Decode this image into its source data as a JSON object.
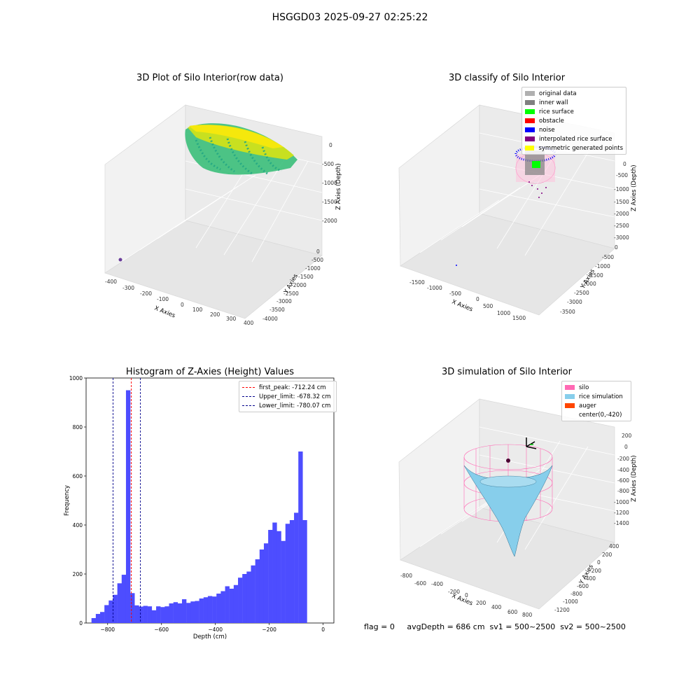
{
  "figure": {
    "title": "HSGGD03 2025-09-27 02:25:22",
    "footer": "flag = 0     avgDepth = 686 cm  sv1 = 500~2500  sv2 = 500~2500"
  },
  "colors": {
    "histogram_bar": "#4d4dff",
    "first_peak": "#ff0000",
    "limits": "#00008b",
    "silo": "#ff69b4",
    "rice_simulation": "#87ceeb",
    "auger": "#ff4500",
    "original_data": "#b0b0b0",
    "inner_wall": "#808080",
    "rice_surface": "#00ff00",
    "obstacle": "#ff0000",
    "noise": "#0000ff",
    "interpolated_rice_surface": "#800080",
    "symmetric_generated_points": "#ffff00"
  },
  "chart_data": [
    {
      "type": "scatter",
      "panel": "raw",
      "title": "3D Plot of Silo Interior(row data)",
      "xlabel": "X Axies",
      "ylabel": "Y Axies",
      "zlabel": "Z Axies (Depth)",
      "xticks": [
        "-400",
        "-300",
        "-200",
        "-100",
        "0",
        "100",
        "200",
        "300",
        "400"
      ],
      "yticks": [
        "0",
        "-500",
        "-1000",
        "-1500",
        "-2000",
        "-2500",
        "-3000",
        "-3500",
        "-4000"
      ],
      "zticks": [
        "0",
        "-500",
        "-1000",
        "-1500",
        "-2000"
      ],
      "xlim": [
        -400,
        400
      ],
      "ylim": [
        -4000,
        0
      ],
      "zlim": [
        -2000,
        0
      ]
    },
    {
      "type": "scatter",
      "panel": "classify",
      "title": "3D classify of Silo Interior",
      "xlabel": "X Axies",
      "ylabel": "Y Axies",
      "zlabel": "Z Axies (Depth)",
      "xticks": [
        "-1500",
        "-1000",
        "-500",
        "0",
        "500",
        "1000",
        "1500"
      ],
      "yticks": [
        "0",
        "-500",
        "-1000",
        "-1500",
        "-2000",
        "-2500",
        "-3000",
        "-3500"
      ],
      "zticks": [
        "0",
        "-500",
        "-1000",
        "-1500",
        "-2000",
        "-2500",
        "-3000"
      ],
      "legend": [
        "original data",
        "inner wall",
        "rice surface",
        "obstacle",
        "noise",
        "interpolated rice surface",
        "symmetric generated points"
      ]
    },
    {
      "type": "bar",
      "panel": "histogram",
      "title": "Histogram of Z-Axies (Height) Values",
      "xlabel": "Depth (cm)",
      "ylabel": "Frequency",
      "xlim": [
        -880,
        40
      ],
      "ylim": [
        0,
        1000
      ],
      "xticks": [
        -800,
        -600,
        -400,
        -200,
        0
      ],
      "yticks": [
        0,
        200,
        400,
        600,
        800,
        1000
      ],
      "bin_start": -860,
      "bin_width": 16,
      "values": [
        20,
        37,
        45,
        73,
        92,
        115,
        162,
        197,
        950,
        122,
        72,
        67,
        70,
        68,
        52,
        68,
        65,
        68,
        80,
        85,
        80,
        97,
        82,
        88,
        90,
        100,
        105,
        110,
        108,
        120,
        130,
        150,
        140,
        155,
        185,
        200,
        210,
        235,
        260,
        300,
        325,
        380,
        410,
        375,
        335,
        405,
        420,
        450,
        700,
        420
      ],
      "vlines": [
        {
          "label": "first_peak: -712.24 cm",
          "x": -712.24,
          "color": "#ff0000"
        },
        {
          "label": "Upper_limit: -678.32 cm",
          "x": -678.32,
          "color": "#00008b"
        },
        {
          "label": "Lower_limit: -780.07 cm",
          "x": -780.07,
          "color": "#00008b"
        }
      ]
    },
    {
      "type": "area",
      "panel": "simulation",
      "title": "3D simulation of Silo Interior",
      "xlabel": "X Axies",
      "ylabel": "Y Axies",
      "zlabel": "Z Axies (Depth)",
      "xticks": [
        "-800",
        "-600",
        "-400",
        "-200",
        "0",
        "200",
        "400",
        "600",
        "800"
      ],
      "yticks": [
        "400",
        "200",
        "0",
        "-200",
        "-400",
        "-600",
        "-800",
        "-1000",
        "-1200"
      ],
      "zticks": [
        "200",
        "0",
        "-200",
        "-400",
        "-600",
        "-800",
        "-1000",
        "-1200",
        "-1400"
      ],
      "legend": [
        "silo",
        "rice simulation",
        "auger",
        "center(0,-420)"
      ]
    }
  ]
}
